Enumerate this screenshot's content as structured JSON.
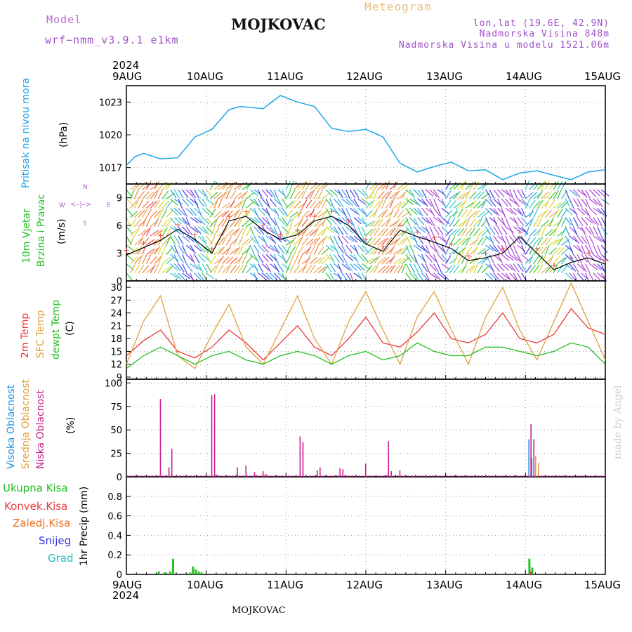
{
  "header": {
    "model_label": "Model",
    "model_name": "wrf−nmm_v3.9.1  e1km",
    "station": "MOJKOVAC",
    "meteogram": "Meteogram",
    "lonlat": "lon,lat (19.6E, 42.9N)",
    "altitude": "Nadmorska Visina 848m",
    "model_altitude": "Nadmorska Visina u modelu 1521.06m"
  },
  "top_year": "2024",
  "bottom_year": "2024",
  "footer_station": "MOJKOVAC",
  "credit": "made by Angel",
  "x_ticks": [
    "9AUG",
    "10AUG",
    "11AUG",
    "12AUG",
    "13AUG",
    "14AUG",
    "15AUG"
  ],
  "colors": {
    "pressure": "#1ea7e8",
    "t2m": "#e83a3a",
    "sfc": "#e0a040",
    "dew": "#22c022",
    "high": "#1e90e0",
    "mid": "#e0a040",
    "low": "#c8208c",
    "total": "#22c022",
    "conv": "#e83a3a",
    "frozen": "#f07020",
    "snow": "#3030e0",
    "graupel": "#20c0c0"
  },
  "panels": {
    "pressure": {
      "title": "Pritisak na nivou mora",
      "unit": "(hPa)",
      "ticks": [
        "1017",
        "1020",
        "1023"
      ]
    },
    "wind": {
      "title1": "10m Vjetar",
      "title2": "Brzina i Pravac",
      "unit": "(m/s)",
      "ticks": [
        "0",
        "3",
        "6",
        "9"
      ],
      "compass_n": "N",
      "compass_w": "W",
      "compass_e": "E",
      "compass_s": "S"
    },
    "temp": {
      "t2m": "2m Temp",
      "sfc": "SFC Temp",
      "dew": "dewpt Temp",
      "unit": "(C)",
      "ticks": [
        "9",
        "12",
        "15",
        "18",
        "21",
        "24",
        "27",
        "30"
      ]
    },
    "cloud": {
      "high": "Visoka Oblacnost",
      "mid": "Srednja Oblacnost",
      "low": "Niska Oblacnost",
      "unit": "(%)",
      "ticks": [
        "0",
        "25",
        "50",
        "75",
        "100"
      ]
    },
    "precip": {
      "total": "Ukupna Kisa",
      "conv": "Konvek.Kisa",
      "frozen": "Zaledj.Kisa",
      "snow": "Snijeg",
      "graupel": "Grad",
      "unit": "1hr Precip (mm)",
      "ticks": [
        "0",
        "0.2",
        "0.4",
        "0.6",
        "0.8"
      ]
    }
  },
  "chart_data": [
    {
      "type": "line",
      "name": "pressure",
      "ylabel": "(hPa)",
      "ylim": [
        1015.5,
        1024.5
      ],
      "x_unit": "hours since 9AUG 00",
      "x": [
        0,
        3,
        6,
        12,
        18,
        24,
        30,
        36,
        40,
        48,
        54,
        60,
        66,
        72,
        78,
        84,
        90,
        96,
        102,
        108,
        114,
        120,
        126,
        132,
        138,
        144,
        150,
        156,
        162,
        168
      ],
      "values": [
        1017.2,
        1018.0,
        1018.3,
        1017.8,
        1017.9,
        1019.8,
        1020.5,
        1022.3,
        1022.6,
        1022.4,
        1023.6,
        1023.0,
        1022.6,
        1020.6,
        1020.3,
        1020.5,
        1019.8,
        1017.4,
        1016.6,
        1017.1,
        1017.5,
        1016.7,
        1016.8,
        1015.9,
        1016.5,
        1016.7,
        1016.3,
        1015.9,
        1016.6,
        1016.8
      ]
    },
    {
      "type": "line",
      "name": "wind_speed",
      "ylabel": "(m/s)",
      "ylim": [
        0,
        10.5
      ],
      "x": [
        0,
        6,
        12,
        18,
        24,
        30,
        36,
        42,
        48,
        54,
        60,
        66,
        72,
        78,
        84,
        90,
        96,
        102,
        108,
        114,
        120,
        126,
        132,
        138,
        144,
        150,
        156,
        162,
        168
      ],
      "values": [
        2.8,
        3.6,
        4.4,
        5.6,
        4.5,
        3.0,
        6.5,
        7.0,
        5.5,
        4.5,
        5.0,
        6.5,
        7.0,
        6.0,
        4.0,
        3.2,
        5.5,
        4.8,
        4.2,
        3.5,
        2.2,
        2.5,
        3.0,
        4.8,
        3.0,
        1.2,
        2.0,
        2.5,
        1.8
      ]
    },
    {
      "type": "line",
      "name": "temperature",
      "ylabel": "(C)",
      "ylim": [
        8.5,
        31.5
      ],
      "x": [
        0,
        6,
        12,
        18,
        24,
        30,
        36,
        42,
        48,
        54,
        60,
        66,
        72,
        78,
        84,
        90,
        96,
        102,
        108,
        114,
        120,
        126,
        132,
        138,
        144,
        150,
        156,
        162,
        168
      ],
      "series": [
        {
          "name": "2m Temp",
          "values": [
            14,
            17.5,
            20,
            15,
            13.5,
            16,
            20,
            17,
            13,
            17,
            21,
            16,
            14,
            18,
            23,
            17,
            16,
            19.5,
            24,
            18,
            17,
            19,
            24,
            18,
            17,
            19,
            25,
            20.5,
            19
          ]
        },
        {
          "name": "SFC Temp",
          "values": [
            12,
            22,
            28,
            14,
            11,
            19,
            26,
            16,
            12,
            20,
            28,
            18,
            12,
            22,
            29,
            20,
            12,
            23,
            29,
            20,
            12,
            23,
            30,
            20,
            13,
            22,
            31,
            22,
            13
          ]
        },
        {
          "name": "dewpt Temp",
          "values": [
            11,
            14,
            16,
            14,
            12,
            14,
            15,
            13,
            12,
            14,
            15,
            14,
            12,
            14,
            15,
            13,
            14,
            17,
            15,
            14,
            14,
            16,
            16,
            15,
            14,
            15,
            17,
            16,
            12
          ]
        }
      ]
    },
    {
      "type": "bar",
      "name": "cloud_cover",
      "ylabel": "(%)",
      "ylim": [
        0,
        100
      ],
      "series": [
        {
          "name": "Visoka Oblacnost",
          "x": [
            141,
            142
          ],
          "values": [
            40,
            20
          ]
        },
        {
          "name": "Srednja Oblacnost",
          "x": [
            143,
            144
          ],
          "values": [
            22,
            15
          ]
        },
        {
          "name": "Niska Oblacnost",
          "x": [
            11,
            14,
            15,
            29,
            30,
            31,
            38,
            41,
            44,
            47,
            48,
            60,
            61,
            66,
            67,
            74,
            75,
            83,
            91,
            92,
            95,
            141,
            142
          ],
          "values": [
            83,
            10,
            30,
            87,
            88,
            2,
            10,
            12,
            5,
            6,
            3,
            43,
            37,
            7,
            10,
            9,
            8,
            14,
            38,
            6,
            7,
            56,
            40
          ]
        }
      ]
    },
    {
      "type": "bar",
      "name": "precip_1h",
      "ylabel": "1hr Precip (mm)",
      "ylim": [
        0,
        1.0
      ],
      "series": [
        {
          "name": "Ukupna Kisa",
          "x": [
            11,
            13,
            15,
            16,
            22,
            23,
            24,
            25,
            26,
            126,
            141,
            142
          ],
          "values": [
            0.03,
            0.02,
            0.03,
            0.16,
            0.02,
            0.08,
            0.05,
            0.03,
            0.02,
            0.01,
            0.16,
            0.07
          ]
        },
        {
          "name": "Konvek.Kisa",
          "x": [
            141
          ],
          "values": [
            0.03
          ]
        }
      ]
    }
  ]
}
